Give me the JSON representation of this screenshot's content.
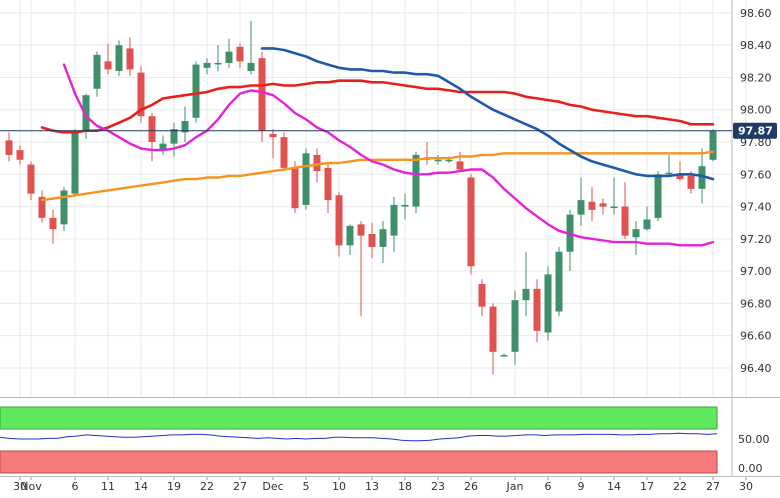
{
  "chart_data": [
    {
      "type": "candlestick",
      "title": "",
      "xlabel": "",
      "ylabel": "",
      "ylim": [
        96.22,
        98.68
      ],
      "y_ticks": [
        "98.60",
        "98.40",
        "98.20",
        "98.00",
        "97.80",
        "97.60",
        "97.40",
        "97.20",
        "97.00",
        "96.80",
        "96.60",
        "96.40"
      ],
      "x_ticks": [
        {
          "i": 1,
          "label": "30"
        },
        {
          "i": 2,
          "label": "Nov"
        },
        {
          "i": 6,
          "label": "6"
        },
        {
          "i": 9,
          "label": "11"
        },
        {
          "i": 12,
          "label": "14"
        },
        {
          "i": 15,
          "label": "19"
        },
        {
          "i": 18,
          "label": "22"
        },
        {
          "i": 21,
          "label": "27"
        },
        {
          "i": 24,
          "label": "Dec"
        },
        {
          "i": 27,
          "label": "5"
        },
        {
          "i": 30,
          "label": "10"
        },
        {
          "i": 33,
          "label": "13"
        },
        {
          "i": 36,
          "label": "18"
        },
        {
          "i": 39,
          "label": "23"
        },
        {
          "i": 42,
          "label": "26"
        },
        {
          "i": 46,
          "label": "Jan"
        },
        {
          "i": 49,
          "label": "6"
        },
        {
          "i": 52,
          "label": "9"
        },
        {
          "i": 55,
          "label": "14"
        },
        {
          "i": 58,
          "label": "17"
        },
        {
          "i": 61,
          "label": "22"
        },
        {
          "i": 64,
          "label": "27"
        },
        {
          "i": 67,
          "label": "30"
        }
      ],
      "last_price": "97.87",
      "candles": [
        [
          97.81,
          97.86,
          97.68,
          97.72
        ],
        [
          97.75,
          97.78,
          97.66,
          97.69
        ],
        [
          97.66,
          97.68,
          97.44,
          97.48
        ],
        [
          97.46,
          97.5,
          97.3,
          97.33
        ],
        [
          97.33,
          97.38,
          97.17,
          97.26
        ],
        [
          97.29,
          97.52,
          97.25,
          97.5
        ],
        [
          97.48,
          97.88,
          97.46,
          97.86
        ],
        [
          97.87,
          98.1,
          97.82,
          98.09
        ],
        [
          98.13,
          98.36,
          98.08,
          98.34
        ],
        [
          98.3,
          98.41,
          98.22,
          98.25
        ],
        [
          98.24,
          98.43,
          98.21,
          98.4
        ],
        [
          98.38,
          98.45,
          98.21,
          98.25
        ],
        [
          98.23,
          98.27,
          97.92,
          97.96
        ],
        [
          97.96,
          97.98,
          97.68,
          97.8
        ],
        [
          97.75,
          97.84,
          97.72,
          97.79
        ],
        [
          97.79,
          97.92,
          97.71,
          97.88
        ],
        [
          97.86,
          98.02,
          97.8,
          97.93
        ],
        [
          97.95,
          98.3,
          97.92,
          98.28
        ],
        [
          98.26,
          98.32,
          98.22,
          98.29
        ],
        [
          98.29,
          98.4,
          98.24,
          98.29
        ],
        [
          98.29,
          98.44,
          98.26,
          98.36
        ],
        [
          98.39,
          98.41,
          98.26,
          98.3
        ],
        [
          98.24,
          98.55,
          98.22,
          98.29
        ],
        [
          98.32,
          98.36,
          97.8,
          97.87
        ],
        [
          97.85,
          97.88,
          97.7,
          97.83
        ],
        [
          97.83,
          97.86,
          97.62,
          97.64
        ],
        [
          97.64,
          97.68,
          97.36,
          97.39
        ],
        [
          97.41,
          97.76,
          97.38,
          97.73
        ],
        [
          97.72,
          97.76,
          97.55,
          97.62
        ],
        [
          97.64,
          97.67,
          97.36,
          97.44
        ],
        [
          97.47,
          97.49,
          97.09,
          97.16
        ],
        [
          97.16,
          97.29,
          97.1,
          97.28
        ],
        [
          97.29,
          97.31,
          96.72,
          97.22
        ],
        [
          97.23,
          97.3,
          97.08,
          97.15
        ],
        [
          97.15,
          97.31,
          97.05,
          97.26
        ],
        [
          97.22,
          97.46,
          97.12,
          97.41
        ],
        [
          97.4,
          97.48,
          97.32,
          97.41
        ],
        [
          97.4,
          97.74,
          97.36,
          97.72
        ],
        [
          97.7,
          97.8,
          97.66,
          97.69
        ],
        [
          97.69,
          97.72,
          97.66,
          97.69
        ],
        [
          97.69,
          97.71,
          97.67,
          97.69
        ],
        [
          97.68,
          97.74,
          97.62,
          97.63
        ],
        [
          97.58,
          97.6,
          96.98,
          97.03
        ],
        [
          96.92,
          96.95,
          96.72,
          96.78
        ],
        [
          96.78,
          96.8,
          96.36,
          96.5
        ],
        [
          96.48,
          96.49,
          96.47,
          96.48
        ],
        [
          96.5,
          96.88,
          96.42,
          96.82
        ],
        [
          96.82,
          97.12,
          96.72,
          96.89
        ],
        [
          96.89,
          96.95,
          96.56,
          96.63
        ],
        [
          96.62,
          97.03,
          96.57,
          96.98
        ],
        [
          96.75,
          97.15,
          96.72,
          97.12
        ],
        [
          97.12,
          97.38,
          97.0,
          97.35
        ],
        [
          97.35,
          97.58,
          97.28,
          97.44
        ],
        [
          97.43,
          97.52,
          97.31,
          97.38
        ],
        [
          97.42,
          97.45,
          97.35,
          97.4
        ],
        [
          97.4,
          97.58,
          97.35,
          97.4
        ],
        [
          97.4,
          97.55,
          97.2,
          97.22
        ],
        [
          97.21,
          97.31,
          97.1,
          97.26
        ],
        [
          97.26,
          97.4,
          97.25,
          97.32
        ],
        [
          97.33,
          97.62,
          97.31,
          97.6
        ],
        [
          97.61,
          97.72,
          97.59,
          97.61
        ],
        [
          97.6,
          97.68,
          97.56,
          97.57
        ],
        [
          97.59,
          97.62,
          97.48,
          97.51
        ],
        [
          97.51,
          97.76,
          97.42,
          97.65
        ],
        [
          97.69,
          97.88,
          97.68,
          97.87
        ]
      ],
      "series": [
        {
          "values": [
            97.89,
            97.87,
            97.86,
            97.86,
            97.87,
            97.87,
            97.89,
            97.92,
            97.95,
            98.0,
            98.03,
            98.07,
            98.08,
            98.09,
            98.1,
            98.11,
            98.13,
            98.14,
            98.14,
            98.15,
            98.15,
            98.16,
            98.15,
            98.15,
            98.16,
            98.17,
            98.17,
            98.18,
            98.18,
            98.18,
            98.17,
            98.17,
            98.16,
            98.15,
            98.14,
            98.13,
            98.13,
            98.12,
            98.11,
            98.11,
            98.11,
            98.11,
            98.11,
            98.1,
            98.08,
            98.07,
            98.06,
            98.05,
            98.03,
            98.02,
            98.0,
            97.99,
            97.98,
            97.97,
            97.96,
            97.96,
            97.95,
            97.94,
            97.93,
            97.91,
            97.91,
            97.91
          ]
        },
        {
          "values": [
            97.44,
            97.45,
            97.46,
            97.47,
            97.48,
            97.49,
            97.5,
            97.51,
            97.52,
            97.53,
            97.54,
            97.55,
            97.56,
            97.57,
            97.57,
            97.58,
            97.58,
            97.59,
            97.59,
            97.6,
            97.61,
            97.62,
            97.63,
            97.64,
            97.65,
            97.66,
            97.67,
            97.67,
            97.68,
            97.69,
            97.69,
            97.69,
            97.69,
            97.69,
            97.69,
            97.7,
            97.7,
            97.7,
            97.71,
            97.71,
            97.72,
            97.72,
            97.73,
            97.73,
            97.73,
            97.73,
            97.73,
            97.73,
            97.73,
            97.73,
            97.73,
            97.73,
            97.73,
            97.73,
            97.73,
            97.73,
            97.73,
            97.73,
            97.73,
            97.73,
            97.73,
            97.74
          ]
        },
        {
          "values": [
            98.28,
            98.1,
            97.96,
            97.9,
            97.87,
            97.83,
            97.79,
            97.76,
            97.75,
            97.75,
            97.76,
            97.78,
            97.83,
            97.87,
            97.94,
            98.03,
            98.1,
            98.12,
            98.11,
            98.09,
            98.04,
            97.98,
            97.94,
            97.89,
            97.86,
            97.81,
            97.77,
            97.72,
            97.68,
            97.66,
            97.63,
            97.61,
            97.6,
            97.6,
            97.61,
            97.61,
            97.62,
            97.63,
            97.63,
            97.58,
            97.51,
            97.45,
            97.39,
            97.34,
            97.29,
            97.25,
            97.23,
            97.21,
            97.2,
            97.19,
            97.18,
            97.18,
            97.18,
            97.17,
            97.17,
            97.17,
            97.16,
            97.16,
            97.16,
            97.18
          ]
        },
        {
          "values": [
            98.38,
            98.38,
            98.37,
            98.35,
            98.33,
            98.3,
            98.28,
            98.26,
            98.25,
            98.25,
            98.24,
            98.24,
            98.23,
            98.23,
            98.22,
            98.22,
            98.21,
            98.17,
            98.13,
            98.08,
            98.04,
            98.0,
            97.97,
            97.94,
            97.91,
            97.88,
            97.84,
            97.79,
            97.75,
            97.71,
            97.68,
            97.66,
            97.64,
            97.62,
            97.6,
            97.59,
            97.59,
            97.59,
            97.6,
            97.6,
            97.59,
            97.57
          ]
        }
      ]
    },
    {
      "type": "line",
      "y_ticks": [
        "50.00",
        "0.00"
      ],
      "series": [
        {
          "values": [
            53,
            51,
            50,
            50,
            50,
            51,
            51,
            54,
            55,
            57,
            56,
            55,
            54,
            53,
            53,
            54,
            55,
            56,
            57,
            57,
            58,
            58,
            57,
            55,
            54,
            53,
            52,
            51,
            52,
            51,
            50,
            51,
            50,
            51,
            51,
            53,
            53,
            52,
            52,
            52,
            51,
            50,
            48,
            47,
            47,
            48,
            50,
            51,
            52,
            55,
            56,
            56,
            55,
            55,
            56,
            57,
            57,
            56,
            57,
            57,
            57,
            58,
            58,
            58,
            58,
            57,
            57,
            58,
            58,
            59,
            59,
            60,
            59,
            59,
            58,
            59
          ]
        }
      ]
    }
  ]
}
